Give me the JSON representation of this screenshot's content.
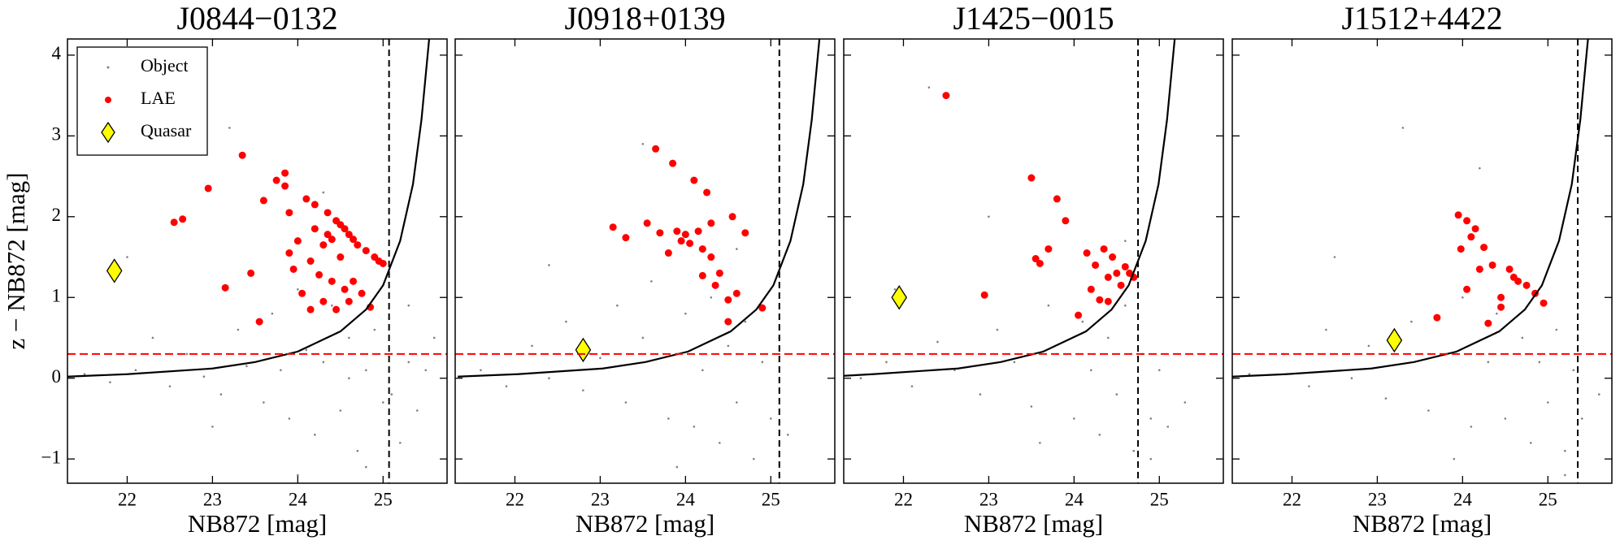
{
  "chart_data": [
    {
      "type": "scatter",
      "title": "J0844−0132",
      "xlabel": "NB872 [mag]",
      "ylabel": "z − NB872 [mag]",
      "xlim": [
        21.3,
        25.75
      ],
      "ylim": [
        -1.3,
        4.2
      ],
      "xticks": [
        22,
        23,
        24,
        25
      ],
      "yticks": [
        {
          "value": -1,
          "label": "−1"
        },
        0,
        1,
        2,
        3,
        4
      ],
      "legend": "upper left",
      "vline": 25.07,
      "hline": 0.3,
      "series": [
        {
          "name": "Object",
          "color": "#808080",
          "x": [
            21.5,
            21.8,
            22.1,
            22.3,
            22.5,
            22.7,
            22.9,
            23.1,
            23.3,
            23.4,
            23.6,
            23.7,
            23.8,
            23.9,
            24.0,
            24.1,
            24.2,
            24.3,
            24.4,
            24.5,
            24.6,
            24.7,
            24.8,
            24.9,
            25.0,
            25.1,
            25.2,
            25.3,
            25.4,
            25.5,
            25.6,
            23.2,
            24.3,
            24.8,
            25.3,
            22.0,
            23.0,
            24.0,
            24.6,
            25.1
          ],
          "values": [
            0.05,
            -0.05,
            0.1,
            0.5,
            -0.1,
            0.3,
            0.02,
            -0.2,
            0.6,
            0.15,
            -0.3,
            0.8,
            0.1,
            -0.5,
            1.1,
            0.35,
            -0.7,
            0.2,
            0.9,
            -0.4,
            0.5,
            -0.9,
            0.1,
            0.6,
            -0.3,
            0.3,
            -0.8,
            0.2,
            -0.4,
            0.1,
            0.5,
            3.1,
            2.3,
            -1.1,
            0.9,
            1.5,
            -0.6,
            -1.2,
            0.0,
            -0.2
          ]
        },
        {
          "name": "LAE",
          "color": "#ff0000",
          "x": [
            22.55,
            22.65,
            22.95,
            23.15,
            23.35,
            23.45,
            23.55,
            23.6,
            23.75,
            23.85,
            23.85,
            23.9,
            23.9,
            23.95,
            24.0,
            24.05,
            24.1,
            24.15,
            24.15,
            24.2,
            24.2,
            24.25,
            24.3,
            24.3,
            24.35,
            24.35,
            24.4,
            24.4,
            24.45,
            24.45,
            24.5,
            24.5,
            24.55,
            24.55,
            24.6,
            24.6,
            24.65,
            24.65,
            24.7,
            24.75,
            24.8,
            24.85,
            24.9,
            24.95,
            25.0
          ],
          "values": [
            1.93,
            1.97,
            2.35,
            1.12,
            2.76,
            1.3,
            0.7,
            2.2,
            2.45,
            2.54,
            2.38,
            2.05,
            1.55,
            1.35,
            1.7,
            1.05,
            2.22,
            1.45,
            0.85,
            2.15,
            1.85,
            1.28,
            0.95,
            1.65,
            1.78,
            2.05,
            1.72,
            1.2,
            1.95,
            0.85,
            1.9,
            1.5,
            1.85,
            1.1,
            1.78,
            0.95,
            1.72,
            1.2,
            1.65,
            1.05,
            1.58,
            0.88,
            1.5,
            1.45,
            1.42
          ]
        },
        {
          "name": "Quasar",
          "color": "#ffff00",
          "marker": "diamond",
          "x": [
            21.85
          ],
          "values": [
            1.33
          ]
        }
      ],
      "curve": {
        "color": "#000000",
        "x": [
          21.3,
          22,
          23,
          23.5,
          24,
          24.5,
          24.8,
          25,
          25.2,
          25.35,
          25.45,
          25.54
        ],
        "values": [
          0.02,
          0.05,
          0.12,
          0.2,
          0.33,
          0.58,
          0.85,
          1.15,
          1.7,
          2.4,
          3.2,
          4.2
        ]
      }
    },
    {
      "type": "scatter",
      "title": "J0918+0139",
      "xlabel": "NB872 [mag]",
      "xlim": [
        21.3,
        25.75
      ],
      "ylim": [
        -1.3,
        4.2
      ],
      "xticks": [
        22,
        23,
        24,
        25
      ],
      "yticks": [
        -1,
        0,
        1,
        2,
        3,
        4
      ],
      "vline": 25.1,
      "hline": 0.3,
      "series": [
        {
          "name": "Object",
          "color": "#808080",
          "x": [
            21.6,
            21.9,
            22.2,
            22.4,
            22.6,
            22.8,
            23.0,
            23.2,
            23.3,
            23.5,
            23.6,
            23.8,
            23.9,
            24.0,
            24.1,
            24.2,
            24.3,
            24.4,
            24.5,
            24.6,
            24.7,
            24.8,
            24.9,
            25.0,
            25.1,
            25.2,
            23.5,
            24.6,
            22.4,
            23.9
          ],
          "values": [
            0.1,
            -0.1,
            0.4,
            0.0,
            0.7,
            -0.15,
            0.25,
            0.9,
            -0.3,
            0.5,
            1.2,
            -0.5,
            0.3,
            0.8,
            -0.6,
            0.1,
            1.0,
            -0.8,
            0.4,
            -0.3,
            0.7,
            -1.0,
            0.2,
            -0.5,
            0.5,
            -0.7,
            2.9,
            1.6,
            1.4,
            -1.1
          ]
        },
        {
          "name": "LAE",
          "color": "#ff0000",
          "x": [
            23.15,
            23.3,
            23.55,
            23.65,
            23.7,
            23.8,
            23.85,
            23.9,
            23.95,
            24.0,
            24.05,
            24.1,
            24.15,
            24.2,
            24.2,
            24.25,
            24.3,
            24.3,
            24.35,
            24.4,
            24.5,
            24.5,
            24.55,
            24.6,
            24.7,
            24.9
          ],
          "values": [
            1.87,
            1.74,
            1.92,
            2.84,
            1.8,
            1.55,
            2.66,
            1.82,
            1.7,
            1.78,
            1.67,
            2.45,
            1.82,
            1.6,
            1.27,
            2.3,
            1.92,
            1.5,
            1.15,
            1.3,
            0.97,
            0.7,
            2.0,
            1.05,
            1.8,
            0.87
          ]
        },
        {
          "name": "Quasar",
          "color": "#ffff00",
          "marker": "diamond",
          "x": [
            22.8
          ],
          "values": [
            0.35
          ]
        }
      ],
      "curve": {
        "color": "#000000",
        "x": [
          21.33,
          22.03,
          23.03,
          23.53,
          24.03,
          24.53,
          24.83,
          25.03,
          25.23,
          25.38,
          25.48,
          25.57
        ],
        "values": [
          0.02,
          0.05,
          0.12,
          0.2,
          0.33,
          0.58,
          0.85,
          1.15,
          1.7,
          2.4,
          3.2,
          4.2
        ]
      }
    },
    {
      "type": "scatter",
      "title": "J1425−0015",
      "xlabel": "NB872 [mag]",
      "xlim": [
        21.3,
        25.75
      ],
      "ylim": [
        -1.3,
        4.2
      ],
      "xticks": [
        22,
        23,
        24,
        25
      ],
      "yticks": [
        -1,
        0,
        1,
        2,
        3,
        4
      ],
      "vline": 24.75,
      "hline": 0.3,
      "series": [
        {
          "name": "Object",
          "color": "#808080",
          "x": [
            21.5,
            21.8,
            22.1,
            22.4,
            22.6,
            22.9,
            23.1,
            23.3,
            23.5,
            23.7,
            23.8,
            24.0,
            24.1,
            24.2,
            24.3,
            24.4,
            24.5,
            24.6,
            24.7,
            24.8,
            24.9,
            25.0,
            25.1,
            25.3,
            22.3,
            23.0,
            24.6,
            21.9,
            23.6,
            24.9
          ],
          "values": [
            0.0,
            0.2,
            -0.1,
            0.45,
            0.1,
            -0.2,
            0.6,
            0.2,
            -0.35,
            0.9,
            0.3,
            -0.5,
            0.7,
            0.1,
            -0.7,
            0.5,
            -0.2,
            0.9,
            -0.9,
            0.3,
            -0.5,
            0.1,
            -0.6,
            -0.3,
            3.6,
            2.0,
            1.7,
            1.1,
            -0.8,
            -1.0
          ]
        },
        {
          "name": "LAE",
          "color": "#ff0000",
          "x": [
            22.5,
            22.95,
            23.5,
            23.55,
            23.6,
            23.7,
            23.8,
            23.9,
            24.05,
            24.15,
            24.2,
            24.25,
            24.3,
            24.35,
            24.4,
            24.4,
            24.45,
            24.5,
            24.55,
            24.6,
            24.65,
            24.7
          ],
          "values": [
            3.5,
            1.03,
            2.48,
            1.48,
            1.42,
            1.6,
            2.22,
            1.95,
            0.78,
            1.55,
            1.1,
            1.4,
            0.97,
            1.6,
            1.25,
            0.95,
            1.5,
            1.3,
            1.15,
            1.38,
            1.3,
            1.25
          ]
        },
        {
          "name": "Quasar",
          "color": "#ffff00",
          "marker": "diamond",
          "x": [
            21.95
          ],
          "values": [
            1.0
          ]
        }
      ],
      "curve": {
        "color": "#000000",
        "x": [
          21.3,
          21.64,
          22.64,
          23.14,
          23.64,
          24.14,
          24.44,
          24.64,
          24.84,
          24.99,
          25.09,
          25.18
        ],
        "values": [
          0.03,
          0.05,
          0.12,
          0.2,
          0.33,
          0.58,
          0.85,
          1.15,
          1.7,
          2.4,
          3.2,
          4.2
        ]
      }
    },
    {
      "type": "scatter",
      "title": "J1512+4422",
      "xlabel": "NB872 [mag]",
      "xlim": [
        21.3,
        25.75
      ],
      "ylim": [
        -1.3,
        4.2
      ],
      "xticks": [
        22,
        23,
        24,
        25
      ],
      "yticks": [
        -1,
        0,
        1,
        2,
        3,
        4
      ],
      "vline": 25.35,
      "hline": 0.3,
      "series": [
        {
          "name": "Object",
          "color": "#808080",
          "x": [
            21.5,
            21.9,
            22.2,
            22.4,
            22.7,
            22.9,
            23.1,
            23.4,
            23.6,
            23.8,
            24.0,
            24.1,
            24.3,
            24.4,
            24.5,
            24.7,
            24.8,
            24.9,
            25.0,
            25.1,
            25.2,
            25.3,
            25.4,
            25.5,
            25.6,
            23.3,
            24.2,
            22.5,
            23.9,
            25.2
          ],
          "values": [
            0.05,
            0.3,
            -0.1,
            0.6,
            0.0,
            0.4,
            -0.25,
            0.7,
            -0.4,
            0.3,
            1.0,
            -0.6,
            0.2,
            0.8,
            -0.5,
            0.5,
            -0.8,
            0.2,
            -0.3,
            0.6,
            -0.9,
            0.1,
            -0.5,
            0.3,
            -0.2,
            3.1,
            2.6,
            1.5,
            -1.0,
            -1.2
          ]
        },
        {
          "name": "LAE",
          "color": "#ff0000",
          "x": [
            23.7,
            23.95,
            23.98,
            24.05,
            24.05,
            24.1,
            24.15,
            24.2,
            24.25,
            24.3,
            24.35,
            24.45,
            24.45,
            24.55,
            24.6,
            24.65,
            24.75,
            24.85,
            24.95
          ],
          "values": [
            0.75,
            2.02,
            1.6,
            1.95,
            1.1,
            1.75,
            1.85,
            1.35,
            1.62,
            0.68,
            1.4,
            1.0,
            0.88,
            1.35,
            1.25,
            1.2,
            1.15,
            1.05,
            0.93
          ]
        },
        {
          "name": "Quasar",
          "color": "#ffff00",
          "marker": "diamond",
          "x": [
            23.2
          ],
          "values": [
            0.47
          ]
        }
      ],
      "curve": {
        "color": "#000000",
        "x": [
          21.3,
          21.93,
          22.93,
          23.43,
          23.93,
          24.43,
          24.73,
          24.93,
          25.13,
          25.28,
          25.38,
          25.47
        ],
        "values": [
          0.02,
          0.05,
          0.12,
          0.2,
          0.33,
          0.58,
          0.85,
          1.15,
          1.7,
          2.4,
          3.2,
          4.2
        ]
      }
    }
  ]
}
